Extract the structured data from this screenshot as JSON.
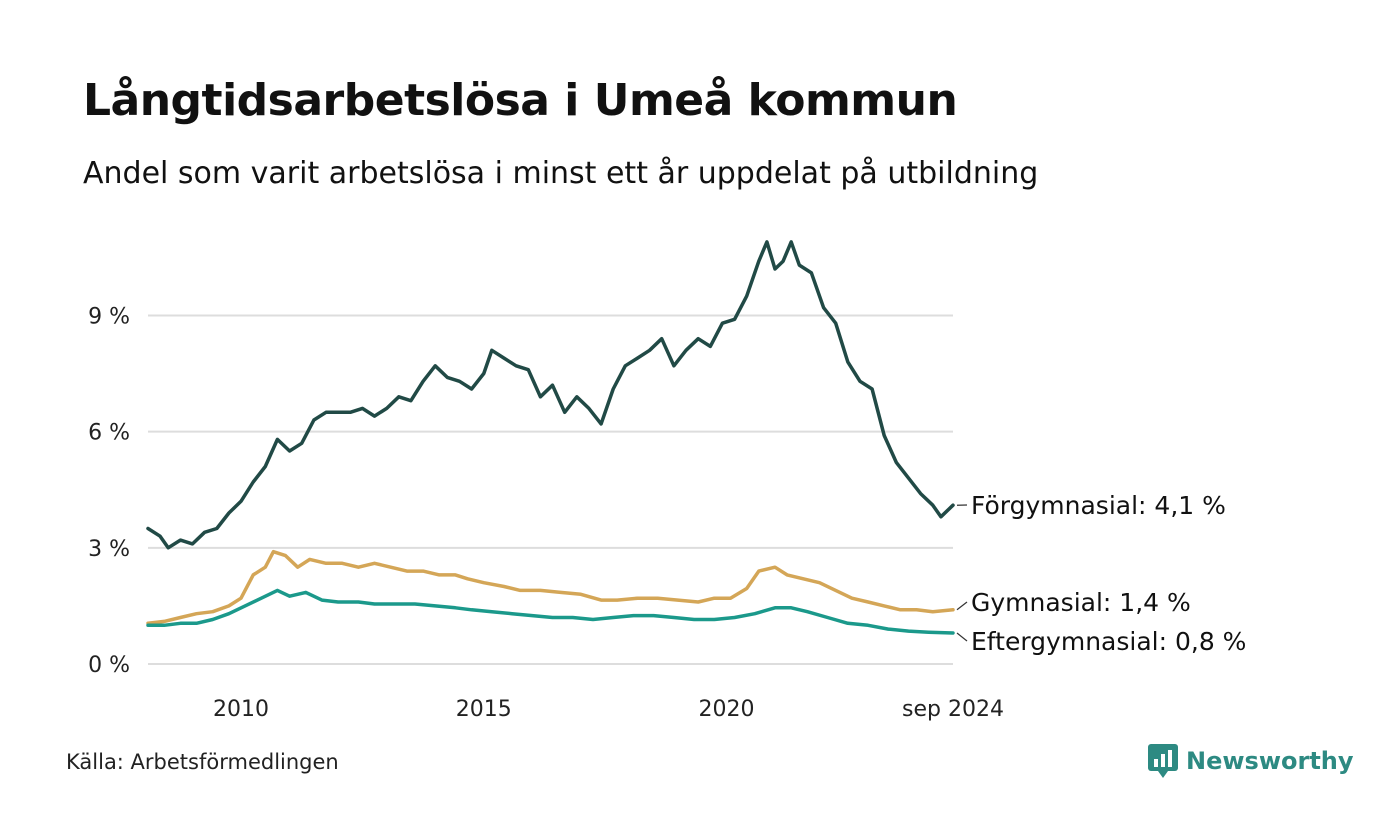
{
  "title": "Långtidsarbetslösa i Umeå kommun",
  "subtitle": "Andel som varit arbetslösa i minst ett år uppdelat på utbildning",
  "source": "Källa: Arbetsförmedlingen",
  "brand": {
    "name": "Newsworthy",
    "icon": "newsworthy-logo-icon",
    "color": "#2d8a82"
  },
  "chart_data": {
    "type": "line",
    "ylim": [
      0,
      11
    ],
    "y_ticks": [
      {
        "value": 0,
        "label": "0 %"
      },
      {
        "value": 3,
        "label": "3 %"
      },
      {
        "value": 6,
        "label": "6 %"
      },
      {
        "value": 9,
        "label": "9 %"
      }
    ],
    "x_ticks": [
      {
        "value": "2010-01",
        "label": "2010"
      },
      {
        "value": "2015-01",
        "label": "2015"
      },
      {
        "value": "2020-01",
        "label": "2020"
      },
      {
        "value": "2024-09",
        "label": "sep 2024"
      }
    ],
    "xlim": [
      "2008-02",
      "2024-09"
    ],
    "grid": true,
    "legend": "none (end-of-line labels)",
    "series": [
      {
        "name": "Förgymnasial",
        "end_label": "Förgymnasial: 4,1 %",
        "color": "#214a46",
        "points": [
          [
            "2008-02",
            3.5
          ],
          [
            "2008-05",
            3.3
          ],
          [
            "2008-07",
            3.0
          ],
          [
            "2008-10",
            3.2
          ],
          [
            "2009-01",
            3.1
          ],
          [
            "2009-04",
            3.4
          ],
          [
            "2009-07",
            3.5
          ],
          [
            "2009-10",
            3.9
          ],
          [
            "2010-01",
            4.2
          ],
          [
            "2010-04",
            4.7
          ],
          [
            "2010-07",
            5.1
          ],
          [
            "2010-10",
            5.8
          ],
          [
            "2011-01",
            5.5
          ],
          [
            "2011-04",
            5.7
          ],
          [
            "2011-07",
            6.3
          ],
          [
            "2011-10",
            6.5
          ],
          [
            "2012-01",
            6.5
          ],
          [
            "2012-04",
            6.5
          ],
          [
            "2012-07",
            6.6
          ],
          [
            "2012-10",
            6.4
          ],
          [
            "2013-01",
            6.6
          ],
          [
            "2013-04",
            6.9
          ],
          [
            "2013-07",
            6.8
          ],
          [
            "2013-10",
            7.3
          ],
          [
            "2014-01",
            7.7
          ],
          [
            "2014-04",
            7.4
          ],
          [
            "2014-07",
            7.3
          ],
          [
            "2014-10",
            7.1
          ],
          [
            "2015-01",
            7.5
          ],
          [
            "2015-03",
            8.1
          ],
          [
            "2015-06",
            7.9
          ],
          [
            "2015-09",
            7.7
          ],
          [
            "2015-12",
            7.6
          ],
          [
            "2016-03",
            6.9
          ],
          [
            "2016-06",
            7.2
          ],
          [
            "2016-09",
            6.5
          ],
          [
            "2016-12",
            6.9
          ],
          [
            "2017-03",
            6.6
          ],
          [
            "2017-06",
            6.2
          ],
          [
            "2017-09",
            7.1
          ],
          [
            "2017-12",
            7.7
          ],
          [
            "2018-03",
            7.9
          ],
          [
            "2018-06",
            8.1
          ],
          [
            "2018-09",
            8.4
          ],
          [
            "2018-12",
            7.7
          ],
          [
            "2019-03",
            8.1
          ],
          [
            "2019-06",
            8.4
          ],
          [
            "2019-09",
            8.2
          ],
          [
            "2019-12",
            8.8
          ],
          [
            "2020-03",
            8.9
          ],
          [
            "2020-06",
            9.5
          ],
          [
            "2020-09",
            10.4
          ],
          [
            "2020-11",
            10.9
          ],
          [
            "2021-01",
            10.2
          ],
          [
            "2021-03",
            10.4
          ],
          [
            "2021-05",
            10.9
          ],
          [
            "2021-07",
            10.3
          ],
          [
            "2021-10",
            10.1
          ],
          [
            "2022-01",
            9.2
          ],
          [
            "2022-04",
            8.8
          ],
          [
            "2022-07",
            7.8
          ],
          [
            "2022-10",
            7.3
          ],
          [
            "2023-01",
            7.1
          ],
          [
            "2023-04",
            5.9
          ],
          [
            "2023-07",
            5.2
          ],
          [
            "2023-10",
            4.8
          ],
          [
            "2024-01",
            4.4
          ],
          [
            "2024-04",
            4.1
          ],
          [
            "2024-06",
            3.8
          ],
          [
            "2024-09",
            4.1
          ]
        ]
      },
      {
        "name": "Gymnasial",
        "end_label": "Gymnasial: 1,4 %",
        "color": "#d4a657",
        "points": [
          [
            "2008-02",
            1.05
          ],
          [
            "2008-06",
            1.1
          ],
          [
            "2008-10",
            1.2
          ],
          [
            "2009-02",
            1.3
          ],
          [
            "2009-06",
            1.35
          ],
          [
            "2009-10",
            1.5
          ],
          [
            "2010-01",
            1.7
          ],
          [
            "2010-04",
            2.3
          ],
          [
            "2010-07",
            2.5
          ],
          [
            "2010-09",
            2.9
          ],
          [
            "2010-12",
            2.8
          ],
          [
            "2011-03",
            2.5
          ],
          [
            "2011-06",
            2.7
          ],
          [
            "2011-10",
            2.6
          ],
          [
            "2012-02",
            2.6
          ],
          [
            "2012-06",
            2.5
          ],
          [
            "2012-10",
            2.6
          ],
          [
            "2013-02",
            2.5
          ],
          [
            "2013-06",
            2.4
          ],
          [
            "2013-10",
            2.4
          ],
          [
            "2014-02",
            2.3
          ],
          [
            "2014-06",
            2.3
          ],
          [
            "2014-09",
            2.2
          ],
          [
            "2015-01",
            2.1
          ],
          [
            "2015-06",
            2.0
          ],
          [
            "2015-10",
            1.9
          ],
          [
            "2016-03",
            1.9
          ],
          [
            "2016-08",
            1.85
          ],
          [
            "2017-01",
            1.8
          ],
          [
            "2017-06",
            1.65
          ],
          [
            "2017-10",
            1.65
          ],
          [
            "2018-03",
            1.7
          ],
          [
            "2018-08",
            1.7
          ],
          [
            "2019-01",
            1.65
          ],
          [
            "2019-06",
            1.6
          ],
          [
            "2019-10",
            1.7
          ],
          [
            "2020-02",
            1.7
          ],
          [
            "2020-06",
            1.95
          ],
          [
            "2020-09",
            2.4
          ],
          [
            "2021-01",
            2.5
          ],
          [
            "2021-04",
            2.3
          ],
          [
            "2021-08",
            2.2
          ],
          [
            "2021-12",
            2.1
          ],
          [
            "2022-04",
            1.9
          ],
          [
            "2022-08",
            1.7
          ],
          [
            "2022-12",
            1.6
          ],
          [
            "2023-04",
            1.5
          ],
          [
            "2023-08",
            1.4
          ],
          [
            "2023-12",
            1.4
          ],
          [
            "2024-04",
            1.35
          ],
          [
            "2024-09",
            1.4
          ]
        ]
      },
      {
        "name": "Eftergymnasial",
        "end_label": "Eftergymnasial: 0,8 %",
        "color": "#1b998b",
        "points": [
          [
            "2008-02",
            1.0
          ],
          [
            "2008-06",
            1.0
          ],
          [
            "2008-10",
            1.05
          ],
          [
            "2009-02",
            1.05
          ],
          [
            "2009-06",
            1.15
          ],
          [
            "2009-10",
            1.3
          ],
          [
            "2010-02",
            1.5
          ],
          [
            "2010-06",
            1.7
          ],
          [
            "2010-10",
            1.9
          ],
          [
            "2011-01",
            1.75
          ],
          [
            "2011-05",
            1.85
          ],
          [
            "2011-09",
            1.65
          ],
          [
            "2012-01",
            1.6
          ],
          [
            "2012-06",
            1.6
          ],
          [
            "2012-10",
            1.55
          ],
          [
            "2013-03",
            1.55
          ],
          [
            "2013-08",
            1.55
          ],
          [
            "2014-01",
            1.5
          ],
          [
            "2014-06",
            1.45
          ],
          [
            "2014-10",
            1.4
          ],
          [
            "2015-03",
            1.35
          ],
          [
            "2015-08",
            1.3
          ],
          [
            "2016-01",
            1.25
          ],
          [
            "2016-06",
            1.2
          ],
          [
            "2016-11",
            1.2
          ],
          [
            "2017-04",
            1.15
          ],
          [
            "2017-09",
            1.2
          ],
          [
            "2018-02",
            1.25
          ],
          [
            "2018-07",
            1.25
          ],
          [
            "2018-12",
            1.2
          ],
          [
            "2019-05",
            1.15
          ],
          [
            "2019-10",
            1.15
          ],
          [
            "2020-03",
            1.2
          ],
          [
            "2020-08",
            1.3
          ],
          [
            "2021-01",
            1.45
          ],
          [
            "2021-05",
            1.45
          ],
          [
            "2021-09",
            1.35
          ],
          [
            "2022-02",
            1.2
          ],
          [
            "2022-07",
            1.05
          ],
          [
            "2022-12",
            1.0
          ],
          [
            "2023-05",
            0.9
          ],
          [
            "2023-10",
            0.85
          ],
          [
            "2024-03",
            0.82
          ],
          [
            "2024-09",
            0.8
          ]
        ]
      }
    ]
  }
}
